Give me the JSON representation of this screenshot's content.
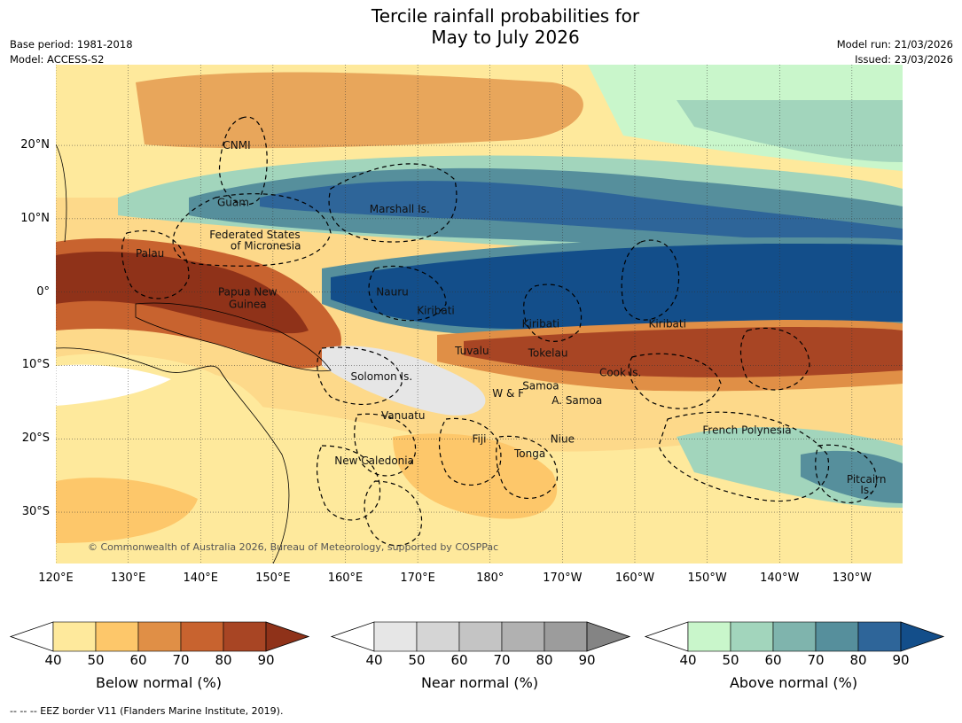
{
  "title": {
    "line1": "Tercile rainfall probabilities for",
    "line2": "May to July 2026"
  },
  "meta": {
    "base_period": "Base period: 1981-2018",
    "model": "Model: ACCESS-S2",
    "model_run": "Model run: 21/03/2026",
    "issued": "Issued: 23/03/2026"
  },
  "map": {
    "lon_range": [
      120,
      237
    ],
    "lat_range": [
      -37,
      31
    ],
    "lon_ticks": [
      {
        "value": 120,
        "label": "120°E"
      },
      {
        "value": 130,
        "label": "130°E"
      },
      {
        "value": 140,
        "label": "140°E"
      },
      {
        "value": 150,
        "label": "150°E"
      },
      {
        "value": 160,
        "label": "160°E"
      },
      {
        "value": 170,
        "label": "170°E"
      },
      {
        "value": 180,
        "label": "180°"
      },
      {
        "value": 190,
        "label": "170°W"
      },
      {
        "value": 200,
        "label": "160°W"
      },
      {
        "value": 210,
        "label": "150°W"
      },
      {
        "value": 220,
        "label": "140°W"
      },
      {
        "value": 230,
        "label": "130°W"
      }
    ],
    "lat_ticks": [
      {
        "value": 20,
        "label": "20°N"
      },
      {
        "value": 10,
        "label": "10°N"
      },
      {
        "value": 0,
        "label": "0°"
      },
      {
        "value": -10,
        "label": "10°S"
      },
      {
        "value": -20,
        "label": "20°S"
      },
      {
        "value": -30,
        "label": "30°S"
      }
    ],
    "places": [
      {
        "name": "CNMI",
        "lon": 145.0,
        "lat": 20.0
      },
      {
        "name": "Guam",
        "lon": 144.5,
        "lat": 12.2
      },
      {
        "name": "Marshall Is.",
        "lon": 167.5,
        "lat": 11.3
      },
      {
        "name": "Federated States",
        "lon": 147.5,
        "lat": 7.8
      },
      {
        "name": "of Micronesia",
        "lon": 149.0,
        "lat": 6.3
      },
      {
        "name": "Palau",
        "lon": 133.0,
        "lat": 5.3
      },
      {
        "name": "Papua New",
        "lon": 146.5,
        "lat": 0.0
      },
      {
        "name": "Guinea",
        "lon": 146.5,
        "lat": -1.7
      },
      {
        "name": "Nauru",
        "lon": 166.5,
        "lat": 0.0
      },
      {
        "name": "Kiribati",
        "lon": 172.5,
        "lat": -2.5
      },
      {
        "name": "Kiribati",
        "lon": 187.0,
        "lat": -4.3
      },
      {
        "name": "Kiribati",
        "lon": 204.5,
        "lat": -4.3
      },
      {
        "name": "Tuvalu",
        "lon": 177.5,
        "lat": -8.0
      },
      {
        "name": "Tokelau",
        "lon": 188.0,
        "lat": -8.3
      },
      {
        "name": "Cook Is.",
        "lon": 198.0,
        "lat": -11.0
      },
      {
        "name": "Solomon Is.",
        "lon": 165.0,
        "lat": -11.5
      },
      {
        "name": "W & F",
        "lon": 182.5,
        "lat": -13.8
      },
      {
        "name": "Samoa",
        "lon": 187.0,
        "lat": -12.8
      },
      {
        "name": "A. Samoa",
        "lon": 192.0,
        "lat": -14.8
      },
      {
        "name": "Vanuatu",
        "lon": 168.0,
        "lat": -16.8
      },
      {
        "name": "French Polynesia",
        "lon": 215.5,
        "lat": -18.8
      },
      {
        "name": "Fiji",
        "lon": 178.5,
        "lat": -20.0
      },
      {
        "name": "Niue",
        "lon": 190.0,
        "lat": -20.0
      },
      {
        "name": "Tonga",
        "lon": 185.5,
        "lat": -22.0
      },
      {
        "name": "New Caledonia",
        "lon": 164.0,
        "lat": -23.0
      },
      {
        "name": "Pitcairn",
        "lon": 232.0,
        "lat": -25.5
      },
      {
        "name": "Is.",
        "lon": 232.0,
        "lat": -27.0
      }
    ],
    "copyright": "© Commonwealth of Australia 2026, Bureau of Meteorology, supported by COSPPac"
  },
  "legends": [
    {
      "label": "Below normal (%)",
      "ticks": [
        "40",
        "50",
        "60",
        "70",
        "80",
        "90"
      ],
      "colors": [
        "#ffffff",
        "#fee99c",
        "#fdc76a",
        "#e08f46",
        "#c8632f",
        "#a84524",
        "#8f3219"
      ]
    },
    {
      "label": "Near normal (%)",
      "ticks": [
        "40",
        "50",
        "60",
        "70",
        "80",
        "90"
      ],
      "colors": [
        "#ffffff",
        "#e6e6e6",
        "#d5d5d5",
        "#c4c4c4",
        "#b1b1b1",
        "#9c9c9c",
        "#848484"
      ]
    },
    {
      "label": "Above normal (%)",
      "ticks": [
        "40",
        "50",
        "60",
        "70",
        "80",
        "90"
      ],
      "colors": [
        "#ffffff",
        "#c9f6cb",
        "#a2d5bc",
        "#7fb4ad",
        "#568f9c",
        "#2e6599",
        "#134e8a"
      ]
    }
  ],
  "footnote": "--  --  -- EEZ border V11 (Flanders Marine Institute, 2019)."
}
